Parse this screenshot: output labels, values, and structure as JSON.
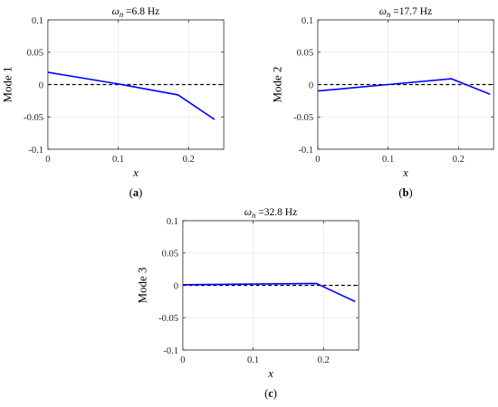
{
  "chart_data": [
    {
      "type": "line",
      "title": "ωn =6.8 Hz",
      "title_symbol": "ω",
      "title_subscript": "n",
      "title_rest": " =6.8 Hz",
      "xlabel": "x",
      "ylabel": "Mode 1",
      "panel_label": "(a)",
      "panel_letter": "a",
      "xlim": [
        0,
        0.25
      ],
      "ylim": [
        -0.1,
        0.1
      ],
      "xticks": [
        "0",
        "0.1",
        "0.2"
      ],
      "yticks": [
        "0.1",
        "0.05",
        "0",
        "-0.05",
        "-0.1"
      ],
      "grid": true,
      "zero_line": "dashed black",
      "series": [
        {
          "color": "#0000ff",
          "x": [
            0,
            0.1,
            0.185,
            0.237
          ],
          "y": [
            0.019,
            0.001,
            -0.016,
            -0.054
          ]
        }
      ]
    },
    {
      "type": "line",
      "title": "ωn =17.7 Hz",
      "title_symbol": "ω",
      "title_subscript": "n",
      "title_rest": " =17.7 Hz",
      "xlabel": "x",
      "ylabel": "Mode 2",
      "panel_label": "(b)",
      "panel_letter": "b",
      "xlim": [
        0,
        0.25
      ],
      "ylim": [
        -0.1,
        0.1
      ],
      "xticks": [
        "0",
        "0.1",
        "0.2"
      ],
      "yticks": [
        "0.1",
        "0.05",
        "0",
        "-0.05",
        "-0.1"
      ],
      "grid": true,
      "zero_line": "dashed black",
      "series": [
        {
          "color": "#0000ff",
          "x": [
            0,
            0.1,
            0.19,
            0.245
          ],
          "y": [
            -0.01,
            0.0,
            0.009,
            -0.015
          ]
        }
      ]
    },
    {
      "type": "line",
      "title": "ωn =32.8 Hz",
      "title_symbol": "ω",
      "title_subscript": "n",
      "title_rest": " =32.8 Hz",
      "xlabel": "x",
      "ylabel": "Mode 3",
      "panel_label": "(c)",
      "panel_letter": "c",
      "xlim": [
        0,
        0.25
      ],
      "ylim": [
        -0.1,
        0.1
      ],
      "xticks": [
        "0",
        "0.1",
        "0.2"
      ],
      "yticks": [
        "0.1",
        "0.05",
        "0",
        "-0.05",
        "-0.1"
      ],
      "grid": true,
      "zero_line": "dashed black",
      "series": [
        {
          "color": "#0000ff",
          "x": [
            0,
            0.1,
            0.19,
            0.245
          ],
          "y": [
            0.001,
            0.002,
            0.003,
            -0.025
          ]
        }
      ]
    }
  ]
}
